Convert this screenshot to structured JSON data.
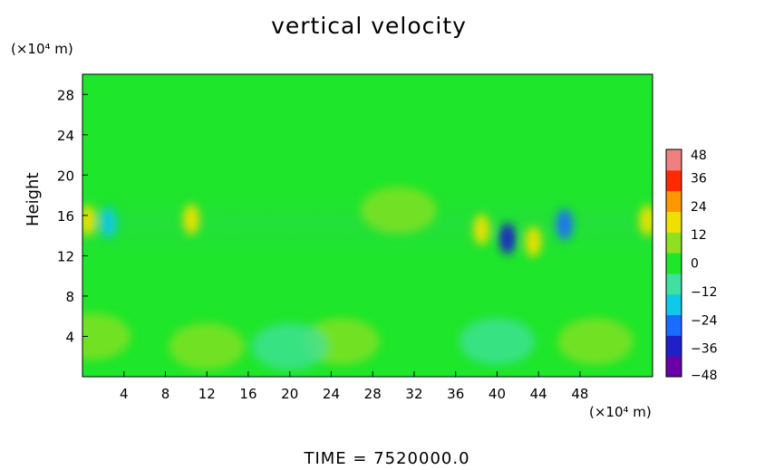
{
  "chart_data": {
    "type": "heatmap",
    "title": "vertical velocity",
    "ylabel": "Height",
    "xunit": "(×10⁴ m)",
    "yunit": "(×10⁴ m)",
    "xticks": [
      4,
      8,
      12,
      16,
      20,
      24,
      28,
      32,
      36,
      40,
      44,
      48
    ],
    "yticks": [
      4,
      8,
      12,
      16,
      20,
      24,
      28
    ],
    "xlim": [
      0,
      55
    ],
    "ylim": [
      0,
      30
    ],
    "colorbar": {
      "ticks": [
        48,
        36,
        24,
        12,
        0,
        -12,
        -24,
        -36,
        -48
      ],
      "labels": [
        "48",
        "36",
        "24",
        "12",
        "0",
        "−12",
        "−24",
        "−36",
        "−48"
      ],
      "range": [
        -48,
        48
      ],
      "colors": [
        "#6a00a8",
        "#2020c8",
        "#1a6cff",
        "#10c8e8",
        "#40e0a0",
        "#1ee62a",
        "#8ee020",
        "#f0e000",
        "#ff9800",
        "#ff2a00",
        "#f08080"
      ]
    },
    "features": [
      {
        "x": 41,
        "y": 13.7,
        "value": -40
      },
      {
        "x": 46.5,
        "y": 15.1,
        "value": -30
      },
      {
        "x": 2.5,
        "y": 15.3,
        "value": -18
      },
      {
        "x": 43.5,
        "y": 13.4,
        "value": 22
      },
      {
        "x": 38.5,
        "y": 14.6,
        "value": 18
      },
      {
        "x": 54.5,
        "y": 15.5,
        "value": 22
      },
      {
        "x": 0.5,
        "y": 15.5,
        "value": 22
      },
      {
        "x": 10.5,
        "y": 15.6,
        "value": 20
      },
      {
        "x": 30.5,
        "y": 16.5,
        "value": 14
      },
      {
        "x": 25,
        "y": 3.5,
        "value": 8
      },
      {
        "x": 20,
        "y": 3,
        "value": -8
      },
      {
        "x": 40,
        "y": 3.5,
        "value": -12
      },
      {
        "x": 49.5,
        "y": 3.5,
        "value": 8
      },
      {
        "x": 12,
        "y": 3,
        "value": 5
      },
      {
        "x": 1,
        "y": 4,
        "value": 6
      }
    ]
  },
  "footer": {
    "time_label": "TIME  =  7520000.0"
  }
}
